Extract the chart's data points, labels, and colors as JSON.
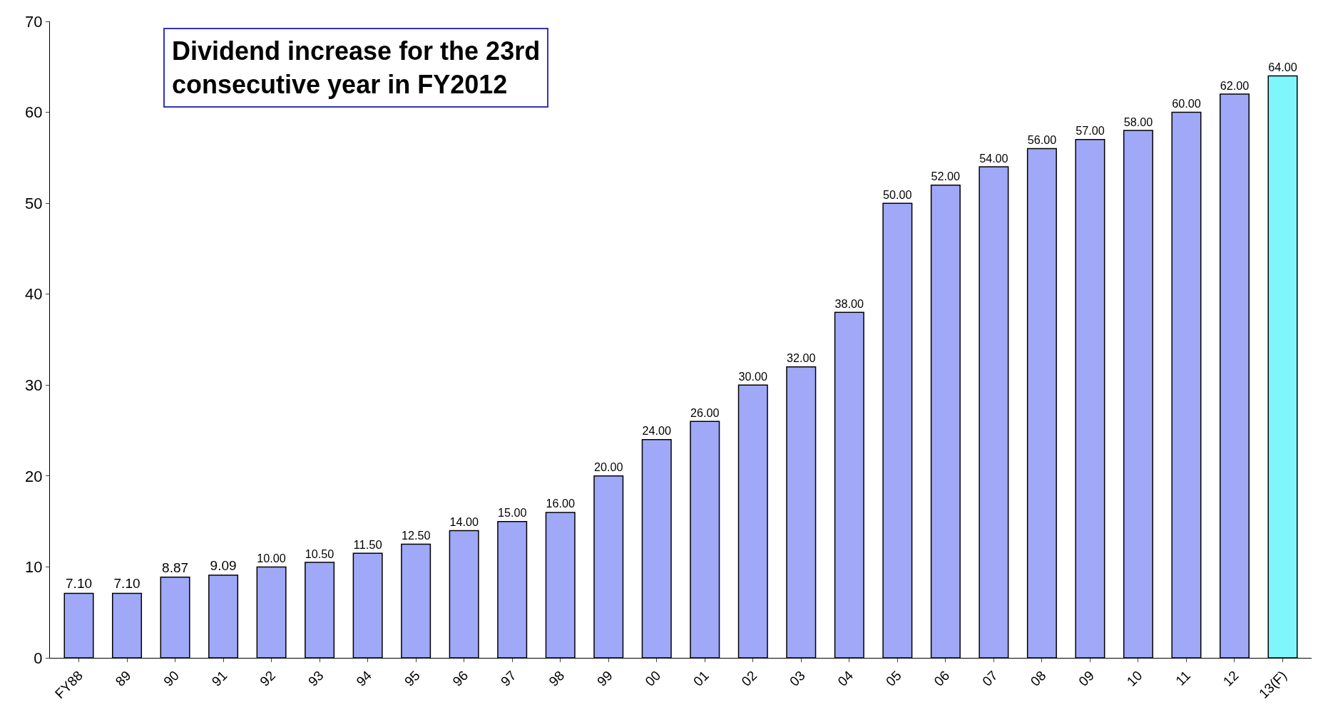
{
  "chart_data": {
    "type": "bar",
    "title": "Dividend increase for the 23rd consecutive year in FY2012",
    "categories": [
      "FY88",
      "89",
      "90",
      "91",
      "92",
      "93",
      "94",
      "95",
      "96",
      "97",
      "98",
      "99",
      "00",
      "01",
      "02",
      "03",
      "04",
      "05",
      "06",
      "07",
      "08",
      "09",
      "10",
      "11",
      "12",
      "13(F)"
    ],
    "values": [
      7.1,
      7.1,
      8.87,
      9.09,
      10.0,
      10.5,
      11.5,
      12.5,
      14.0,
      15.0,
      16.0,
      20.0,
      24.0,
      26.0,
      30.0,
      32.0,
      38.0,
      50.0,
      52.0,
      54.0,
      56.0,
      57.0,
      58.0,
      60.0,
      62.0,
      64.0
    ],
    "value_labels": [
      "7.10",
      "7.10",
      "8.87",
      "9.09",
      "10.00",
      "10.50",
      "11.50",
      "12.50",
      "14.00",
      "15.00",
      "16.00",
      "20.00",
      "24.00",
      "26.00",
      "30.00",
      "32.00",
      "38.00",
      "50.00",
      "52.00",
      "54.00",
      "56.00",
      "57.00",
      "58.00",
      "60.00",
      "62.00",
      "64.00"
    ],
    "colors": [
      "#a0a8f8",
      "#a0a8f8",
      "#a0a8f8",
      "#a0a8f8",
      "#a0a8f8",
      "#a0a8f8",
      "#a0a8f8",
      "#a0a8f8",
      "#a0a8f8",
      "#a0a8f8",
      "#a0a8f8",
      "#a0a8f8",
      "#a0a8f8",
      "#a0a8f8",
      "#a0a8f8",
      "#a0a8f8",
      "#a0a8f8",
      "#a0a8f8",
      "#a0a8f8",
      "#a0a8f8",
      "#a0a8f8",
      "#a0a8f8",
      "#a0a8f8",
      "#a0a8f8",
      "#a0a8f8",
      "#7ff6fb"
    ],
    "ylim": [
      0,
      70
    ],
    "yticks": [
      0,
      10,
      20,
      30,
      40,
      50,
      60,
      70
    ],
    "legend": false
  }
}
